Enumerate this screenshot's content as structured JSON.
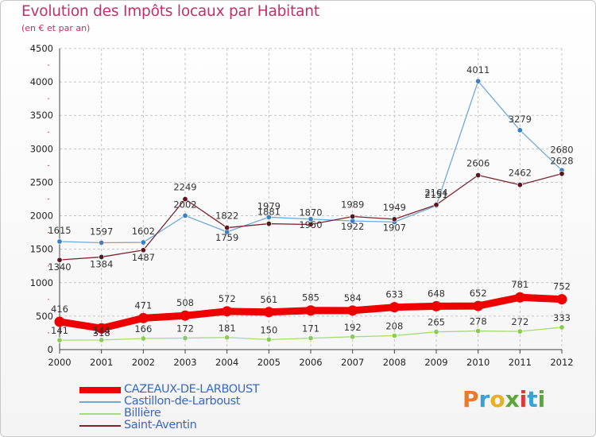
{
  "title": "Evolution des Impôts locaux par Habitant",
  "subtitle": "(en € et par an)",
  "logo": {
    "text": "Proxiti",
    "colors": [
      "#e87a2a",
      "#3aa0d8",
      "#e8b020",
      "#5aa83a",
      "#d83a3a",
      "#3aa0d8",
      "#5aa83a"
    ]
  },
  "chart_data": {
    "type": "line",
    "categories": [
      "2000",
      "2001",
      "2002",
      "2003",
      "2004",
      "2005",
      "2006",
      "2007",
      "2008",
      "2009",
      "2010",
      "2011",
      "2012"
    ],
    "ylim": [
      0,
      4500
    ],
    "yticks": [
      0,
      500,
      1000,
      1500,
      2000,
      2500,
      3000,
      3500,
      4000,
      4500
    ],
    "grid": true,
    "legend_position": "bottom-left",
    "series": [
      {
        "name": "CAZEAUX-DE-LARBOUST",
        "values": [
          416,
          318,
          471,
          508,
          572,
          561,
          585,
          584,
          633,
          648,
          652,
          781,
          752
        ],
        "color": "#ee0000",
        "marker_color": "#ee0000",
        "emphasis": true
      },
      {
        "name": "Castillon-de-Larboust",
        "values": [
          1615,
          1597,
          1602,
          2002,
          1759,
          1979,
          1950,
          1922,
          1907,
          2151,
          4011,
          3279,
          2680
        ],
        "color": "#6fa9d9",
        "marker_color": "#3b80c6"
      },
      {
        "name": "Billière",
        "values": [
          141,
          144,
          166,
          172,
          181,
          150,
          171,
          192,
          208,
          265,
          278,
          272,
          333
        ],
        "color": "#a6dc72",
        "marker_color": "#88cc50"
      },
      {
        "name": "Saint-Aventin",
        "values": [
          1340,
          1384,
          1487,
          2249,
          1822,
          1881,
          1870,
          1989,
          1949,
          2164,
          2606,
          2462,
          2628
        ],
        "color": "#7a2630",
        "marker_color": "#5a1520"
      }
    ]
  }
}
